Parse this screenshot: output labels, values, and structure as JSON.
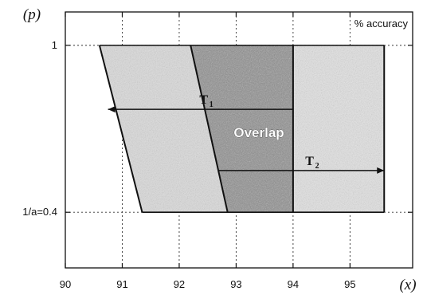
{
  "chart_data": {
    "type": "area",
    "title": "",
    "xlabel": "(x)",
    "ylabel": "(p)",
    "corner_label": "% accuracy",
    "x_ticks": [
      90,
      91,
      92,
      93,
      94,
      95
    ],
    "x_tick_labels": [
      "90",
      "91",
      "92",
      "93",
      "94",
      "95"
    ],
    "y_ticks": [
      0.4,
      1
    ],
    "y_tick_labels": [
      "1/a=0.4",
      "1"
    ],
    "xlim": [
      90,
      96.1
    ],
    "ylim": [
      0.2,
      1.12
    ],
    "grid": true,
    "regions": [
      {
        "label": "",
        "polygon": [
          [
            90.6,
            1
          ],
          [
            92.2,
            1
          ],
          [
            92.85,
            0.4
          ],
          [
            91.35,
            0.4
          ]
        ],
        "color": "#dcdcdc"
      },
      {
        "label": "Overlap",
        "polygon": [
          [
            92.2,
            1
          ],
          [
            94,
            1
          ],
          [
            94,
            0.4
          ],
          [
            92.85,
            0.4
          ]
        ],
        "color": "#8d8d8d"
      },
      {
        "label": "",
        "polygon": [
          [
            94,
            1
          ],
          [
            95.6,
            1
          ],
          [
            95.6,
            0.4
          ],
          [
            94,
            0.4
          ]
        ],
        "color": "#e3e3e3"
      }
    ],
    "boundary_lines": [
      {
        "points": [
          [
            90.6,
            1
          ],
          [
            91.35,
            0.4
          ]
        ]
      },
      {
        "points": [
          [
            92.2,
            1
          ],
          [
            92.85,
            0.4
          ]
        ]
      },
      {
        "points": [
          [
            94,
            1
          ],
          [
            94,
            0.4
          ]
        ]
      },
      {
        "points": [
          [
            95.6,
            1
          ],
          [
            95.6,
            0.4
          ]
        ]
      }
    ],
    "arrows": [
      {
        "label": "T",
        "subscript": "1",
        "from": [
          94,
          0.77
        ],
        "to": [
          90.75,
          0.77
        ]
      },
      {
        "label": "T",
        "subscript": "2",
        "from": [
          92.7,
          0.55
        ],
        "to": [
          95.6,
          0.55
        ]
      }
    ]
  }
}
